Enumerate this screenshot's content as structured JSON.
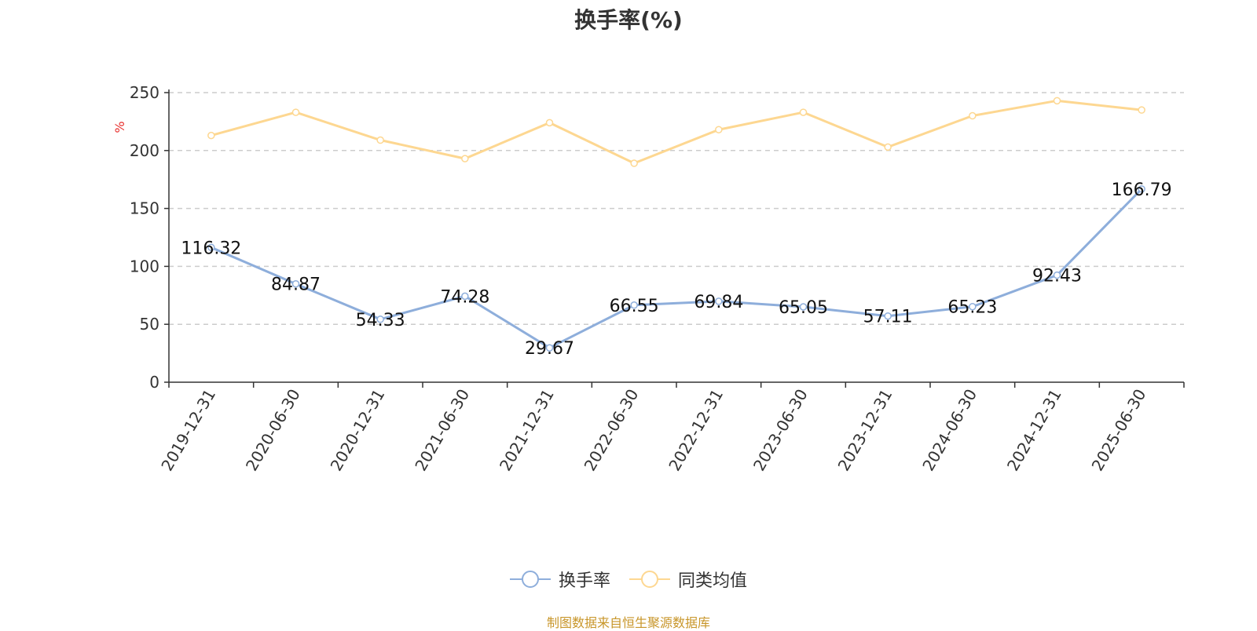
{
  "chart_data": {
    "type": "line",
    "title": "换手率(%)",
    "ylabel": "%",
    "xlabel": "",
    "ylim": [
      0,
      250
    ],
    "yticks": [
      0,
      50,
      100,
      150,
      200,
      250
    ],
    "grid": true,
    "legend_position": "bottom-center",
    "categories": [
      "2019-12-31",
      "2020-06-30",
      "2020-12-31",
      "2021-06-30",
      "2021-12-31",
      "2022-06-30",
      "2022-12-31",
      "2023-06-30",
      "2023-12-31",
      "2024-06-30",
      "2024-12-31",
      "2025-06-30"
    ],
    "series": [
      {
        "name": "换手率",
        "color": "#8eaedb",
        "show_labels": true,
        "values": [
          116.32,
          84.87,
          54.33,
          74.28,
          29.67,
          66.55,
          69.84,
          65.05,
          57.11,
          65.23,
          92.43,
          166.79
        ]
      },
      {
        "name": "同类均值",
        "color": "#fdd791",
        "show_labels": false,
        "values": [
          213,
          233,
          209,
          193,
          224,
          189,
          218,
          233,
          203,
          230,
          243,
          235
        ]
      }
    ]
  },
  "source_note": "制图数据来自恒生聚源数据库",
  "colors": {
    "axis": "#333333",
    "grid": "#cccccc",
    "ylabel": "#e8302e",
    "source": "#c8962a"
  }
}
